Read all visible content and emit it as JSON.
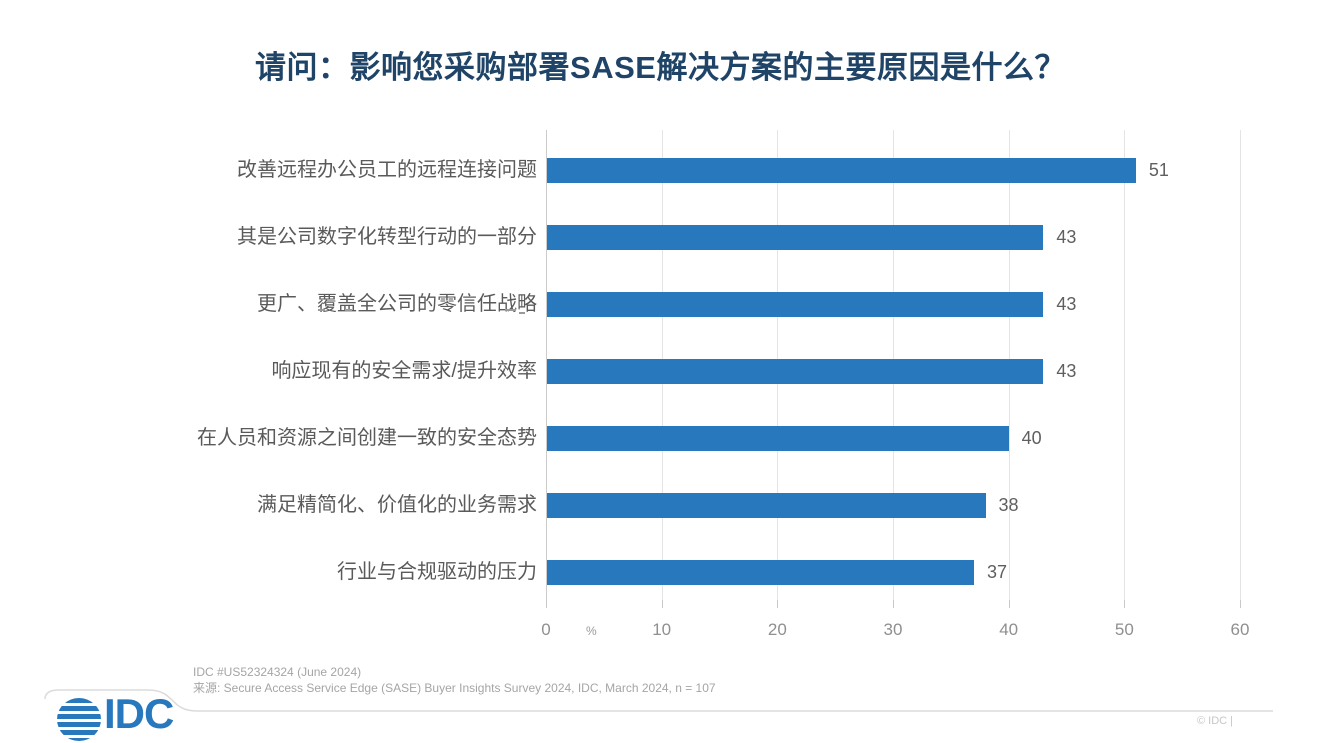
{
  "title": "请问：影响您采购部署SASE解决方案的主要原因是什么？",
  "chart_data": {
    "type": "bar",
    "orientation": "horizontal",
    "categories": [
      "改善远程办公员工的远程连接问题",
      "其是公司数字化转型行动的一部分",
      "更广、覆盖全公司的零信任战略",
      "响应现有的安全需求/提升效率",
      "在人员和资源之间创建一致的安全态势",
      "满足精简化、价值化的业务需求",
      "行业与合规驱动的压力"
    ],
    "values": [
      51,
      43,
      43,
      43,
      40,
      38,
      37
    ],
    "title": "请问：影响您采购部署SASE解决方案的主要原因是什么？",
    "xlabel": "%",
    "ylabel": "",
    "xlim": [
      0,
      60
    ],
    "xticks": [
      0,
      10,
      20,
      30,
      40,
      50,
      60
    ],
    "grid": true,
    "legend_position": "none",
    "bar_color": "#2778BC",
    "value_labels_shown": true
  },
  "footer": {
    "doc_id": "IDC #US52324324 (June 2024)",
    "source": "来源: Secure Access Service Edge (SASE) Buyer Insights Survey 2024, IDC, March 2024, n = 107"
  },
  "brand": {
    "logo_text": "IDC",
    "copyright": "© IDC |"
  }
}
